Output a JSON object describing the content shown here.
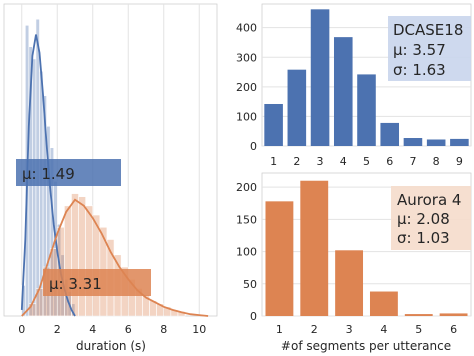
{
  "chart_data": [
    {
      "type": "histogram",
      "xlabel": "duration (s)",
      "xticks": [
        "0",
        "2",
        "4",
        "6",
        "8",
        "10"
      ],
      "xlim": [
        -1,
        11
      ],
      "ymax": 1.0,
      "series": [
        {
          "color": "#4C72B0",
          "annotation": "μ:  1.49",
          "bins": [
            {
              "x0": 0.0,
              "x1": 0.2,
              "h": 0.1
            },
            {
              "x0": 0.2,
              "x1": 0.4,
              "h": 0.95
            },
            {
              "x0": 0.4,
              "x1": 0.6,
              "h": 0.88
            },
            {
              "x0": 0.6,
              "x1": 0.8,
              "h": 0.84
            },
            {
              "x0": 0.8,
              "x1": 1.0,
              "h": 0.97
            },
            {
              "x0": 1.0,
              "x1": 1.2,
              "h": 0.8
            },
            {
              "x0": 1.2,
              "x1": 1.4,
              "h": 0.72
            },
            {
              "x0": 1.4,
              "x1": 1.6,
              "h": 0.62
            },
            {
              "x0": 1.6,
              "x1": 1.8,
              "h": 0.55
            },
            {
              "x0": 1.8,
              "x1": 2.0,
              "h": 0.44
            },
            {
              "x0": 2.0,
              "x1": 2.2,
              "h": 0.3
            },
            {
              "x0": 2.2,
              "x1": 2.4,
              "h": 0.2
            },
            {
              "x0": 2.4,
              "x1": 2.6,
              "h": 0.12
            },
            {
              "x0": 2.6,
              "x1": 2.8,
              "h": 0.08
            },
            {
              "x0": 2.8,
              "x1": 3.0,
              "h": 0.04
            }
          ],
          "kde": [
            [
              0.0,
              0.02
            ],
            [
              0.2,
              0.25
            ],
            [
              0.4,
              0.62
            ],
            [
              0.6,
              0.85
            ],
            [
              0.8,
              0.92
            ],
            [
              1.0,
              0.86
            ],
            [
              1.2,
              0.72
            ],
            [
              1.4,
              0.56
            ],
            [
              1.6,
              0.42
            ],
            [
              1.8,
              0.3
            ],
            [
              2.0,
              0.21
            ],
            [
              2.2,
              0.14
            ],
            [
              2.4,
              0.09
            ],
            [
              2.6,
              0.05
            ],
            [
              2.8,
              0.02
            ],
            [
              3.0,
              0.0
            ]
          ]
        },
        {
          "color": "#DD8452",
          "annotation": "μ:  3.31",
          "bins": [
            {
              "x0": 0.4,
              "x1": 0.8,
              "h": 0.04
            },
            {
              "x0": 0.8,
              "x1": 1.2,
              "h": 0.09
            },
            {
              "x0": 1.2,
              "x1": 1.6,
              "h": 0.16
            },
            {
              "x0": 1.6,
              "x1": 2.0,
              "h": 0.22
            },
            {
              "x0": 2.0,
              "x1": 2.4,
              "h": 0.29
            },
            {
              "x0": 2.4,
              "x1": 2.8,
              "h": 0.36
            },
            {
              "x0": 2.8,
              "x1": 3.2,
              "h": 0.4
            },
            {
              "x0": 3.2,
              "x1": 3.6,
              "h": 0.39
            },
            {
              "x0": 3.6,
              "x1": 4.0,
              "h": 0.36
            },
            {
              "x0": 4.0,
              "x1": 4.4,
              "h": 0.33
            },
            {
              "x0": 4.4,
              "x1": 4.8,
              "h": 0.29
            },
            {
              "x0": 4.8,
              "x1": 5.2,
              "h": 0.25
            },
            {
              "x0": 5.2,
              "x1": 5.6,
              "h": 0.2
            },
            {
              "x0": 5.6,
              "x1": 6.0,
              "h": 0.16
            },
            {
              "x0": 6.0,
              "x1": 6.4,
              "h": 0.12
            },
            {
              "x0": 6.4,
              "x1": 6.8,
              "h": 0.09
            },
            {
              "x0": 6.8,
              "x1": 7.2,
              "h": 0.07
            },
            {
              "x0": 7.2,
              "x1": 7.6,
              "h": 0.05
            },
            {
              "x0": 7.6,
              "x1": 8.0,
              "h": 0.04
            },
            {
              "x0": 8.0,
              "x1": 8.4,
              "h": 0.03
            },
            {
              "x0": 8.4,
              "x1": 8.8,
              "h": 0.02
            },
            {
              "x0": 8.8,
              "x1": 9.2,
              "h": 0.015
            }
          ],
          "kde": [
            [
              0.0,
              0.0
            ],
            [
              0.5,
              0.03
            ],
            [
              1.0,
              0.09
            ],
            [
              1.5,
              0.18
            ],
            [
              2.0,
              0.27
            ],
            [
              2.5,
              0.34
            ],
            [
              3.0,
              0.38
            ],
            [
              3.5,
              0.36
            ],
            [
              4.0,
              0.32
            ],
            [
              4.5,
              0.27
            ],
            [
              5.0,
              0.21
            ],
            [
              5.5,
              0.16
            ],
            [
              6.0,
              0.12
            ],
            [
              6.5,
              0.085
            ],
            [
              7.0,
              0.06
            ],
            [
              7.5,
              0.045
            ],
            [
              8.0,
              0.03
            ],
            [
              8.5,
              0.02
            ],
            [
              9.0,
              0.012
            ],
            [
              9.5,
              0.006
            ],
            [
              10.0,
              0.003
            ],
            [
              10.5,
              0.0
            ]
          ]
        }
      ]
    },
    {
      "type": "bar",
      "color": "#4C72B0",
      "categories": [
        "1",
        "2",
        "3",
        "4",
        "5",
        "6",
        "7",
        "8",
        "9"
      ],
      "values": [
        142,
        258,
        462,
        368,
        242,
        78,
        27,
        22,
        24
      ],
      "ylim": [
        0,
        480
      ],
      "yticks": [
        "0",
        "100",
        "200",
        "300",
        "400"
      ],
      "annotation": [
        "DCASE18",
        "μ:  3.57",
        "σ:  1.63"
      ]
    },
    {
      "type": "bar",
      "color": "#DD8452",
      "categories": [
        "1",
        "2",
        "3",
        "4",
        "5",
        "6"
      ],
      "values": [
        178,
        210,
        102,
        38,
        3,
        4
      ],
      "ylim": [
        0,
        222
      ],
      "yticks": [
        "0",
        "50",
        "100",
        "150",
        "200"
      ],
      "xlabel": "#of segments per utterance",
      "annotation": [
        "Aurora 4",
        "μ:  2.08",
        "σ:  1.03"
      ]
    }
  ]
}
